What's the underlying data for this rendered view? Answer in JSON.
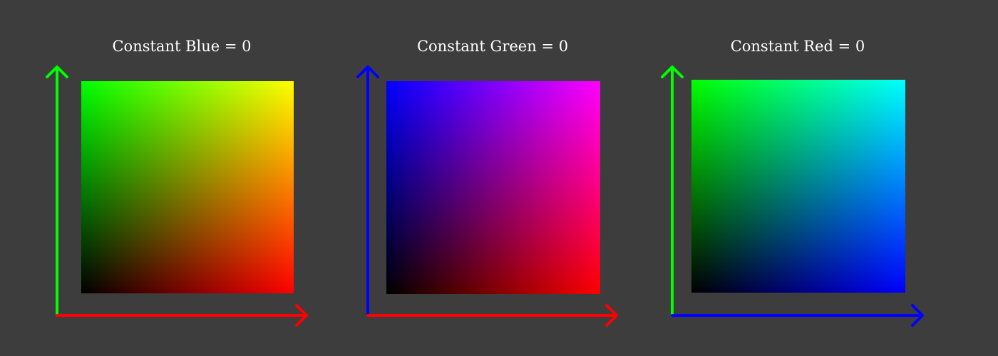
{
  "panels": [
    {
      "title": "Constant Blue = 0",
      "constant_channel": "blue",
      "constant_value": 0,
      "x_axis_channel": "red",
      "y_axis_channel": "green",
      "x_axis_color": "#ff0000",
      "y_axis_color": "#00ff00",
      "corner_colors": {
        "bottom_left": "#000000",
        "bottom_right": "#ff0000",
        "top_left": "#00ff00",
        "top_right": "#ffff00"
      }
    },
    {
      "title": "Constant Green = 0",
      "constant_channel": "green",
      "constant_value": 0,
      "x_axis_channel": "red",
      "y_axis_channel": "blue",
      "x_axis_color": "#ff0000",
      "y_axis_color": "#0000ff",
      "corner_colors": {
        "bottom_left": "#000000",
        "bottom_right": "#ff0000",
        "top_left": "#0000ff",
        "top_right": "#ff00ff"
      }
    },
    {
      "title": "Constant Red = 0",
      "constant_channel": "red",
      "constant_value": 0,
      "x_axis_channel": "blue",
      "y_axis_channel": "green",
      "x_axis_color": "#0000ff",
      "y_axis_color": "#00ff00",
      "corner_colors": {
        "bottom_left": "#000000",
        "bottom_right": "#0000ff",
        "top_left": "#00ff00",
        "top_right": "#00ffff"
      }
    }
  ],
  "background_color": "#3d3d3d",
  "title_color": "#ffffff"
}
